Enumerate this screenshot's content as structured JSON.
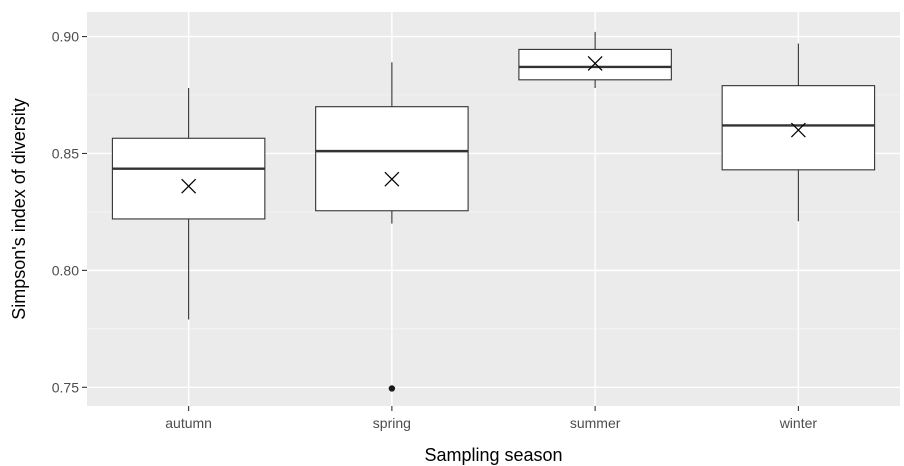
{
  "chart_data": {
    "type": "box",
    "title": "",
    "xlabel": "Sampling season",
    "ylabel": "Simpson's index of diversity",
    "categories": [
      "autumn",
      "spring",
      "summer",
      "winter"
    ],
    "ylim": [
      0.742,
      0.9105
    ],
    "yticks": [
      0.75,
      0.8,
      0.85,
      0.9
    ],
    "ytick_labels": [
      "0.75",
      "0.80",
      "0.85",
      "0.90"
    ],
    "grid": true,
    "legend": "none",
    "boxes": [
      {
        "category": "autumn",
        "whisker_low": 0.779,
        "q1": 0.822,
        "median": 0.8435,
        "q3": 0.8565,
        "whisker_high": 0.878,
        "mean": 0.836,
        "outliers": []
      },
      {
        "category": "spring",
        "whisker_low": 0.82,
        "q1": 0.8255,
        "median": 0.851,
        "q3": 0.87,
        "whisker_high": 0.889,
        "mean": 0.839,
        "outliers": [
          0.7495
        ]
      },
      {
        "category": "summer",
        "whisker_low": 0.878,
        "q1": 0.8815,
        "median": 0.887,
        "q3": 0.8945,
        "whisker_high": 0.902,
        "mean": 0.8885,
        "outliers": []
      },
      {
        "category": "winter",
        "whisker_low": 0.821,
        "q1": 0.843,
        "median": 0.862,
        "q3": 0.879,
        "whisker_high": 0.897,
        "mean": 0.86,
        "outliers": []
      }
    ],
    "colors": {
      "panel": "#ebebeb",
      "grid_major": "#ffffff",
      "grid_minor": "#f5f5f5",
      "box_fill": "#ffffff",
      "box_stroke": "#333333",
      "median": "#333333",
      "axis_tick": "#333333",
      "outlier": "#1a1a1a"
    }
  }
}
